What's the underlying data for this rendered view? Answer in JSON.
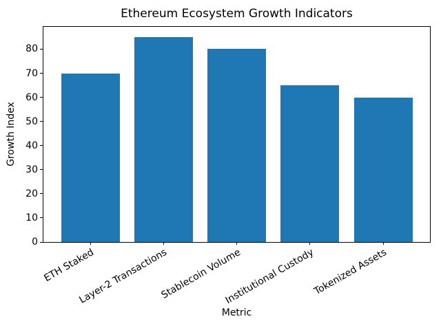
{
  "chart_data": {
    "type": "bar",
    "title": "Ethereum Ecosystem Growth Indicators",
    "xlabel": "Metric",
    "ylabel": "Growth Index",
    "categories": [
      "ETH Staked",
      "Layer-2 Transactions",
      "Stablecoin Volume",
      "Institutional Custody",
      "Tokenized Assets"
    ],
    "values": [
      70,
      85,
      80,
      65,
      60
    ],
    "yticks": [
      0,
      10,
      20,
      30,
      40,
      50,
      60,
      70,
      80
    ],
    "ylim": [
      0,
      89.25
    ],
    "bar_color": "#1f77b4",
    "axis_color": "#000000",
    "background_color": "#ffffff",
    "grid": false,
    "legend": "none",
    "xtick_rotation_deg": 30,
    "bar_width_fraction": 0.8
  }
}
